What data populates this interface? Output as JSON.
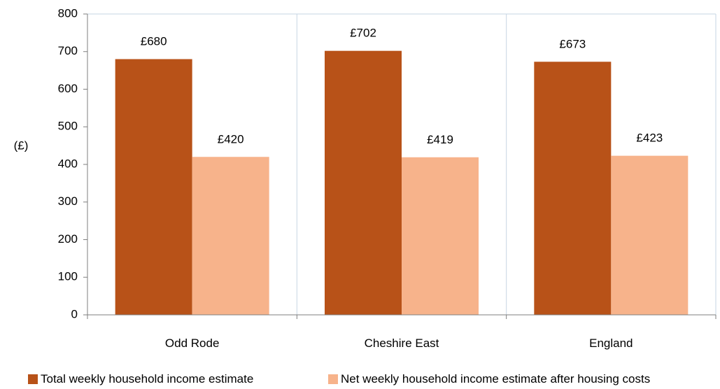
{
  "chart_data": {
    "type": "bar",
    "categories": [
      "Odd Rode",
      "Cheshire East",
      "England"
    ],
    "series": [
      {
        "name": "Total weekly household income estimate",
        "values": [
          680,
          702,
          673
        ],
        "labels": [
          "£680",
          "£702",
          "£673"
        ],
        "color": "#b85218"
      },
      {
        "name": "Net weekly household income estimate after housing costs",
        "values": [
          420,
          419,
          423
        ],
        "labels": [
          "£420",
          "£419",
          "£423"
        ],
        "color": "#f7b38b"
      }
    ],
    "title": "",
    "xlabel": "",
    "ylabel": "(£)",
    "ylim": [
      0,
      800
    ],
    "yticks": [
      "0",
      "100",
      "200",
      "300",
      "400",
      "500",
      "600",
      "700",
      "800"
    ],
    "grid": "vertical category separators",
    "legend": "bottom"
  }
}
